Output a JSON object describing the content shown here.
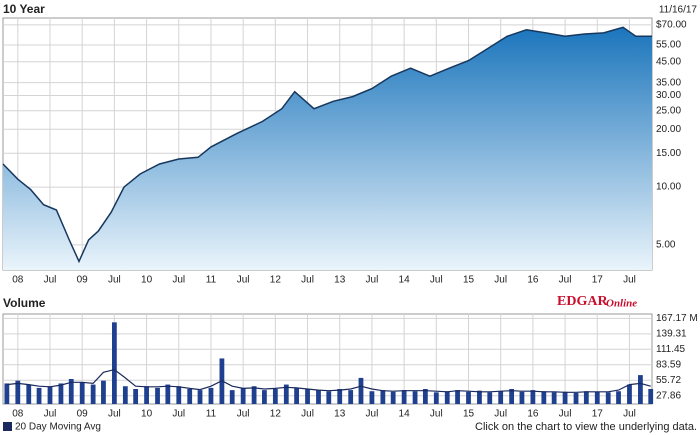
{
  "chart_data": [
    {
      "type": "area",
      "title": "10 Year",
      "date": "11/16/17",
      "log_scale": true,
      "grid": true,
      "line_color": "#17375e",
      "fill_top": "#1b75bc",
      "fill_bottom": "#eaf4fb",
      "x": [
        2007.77,
        2008.0,
        2008.2,
        2008.4,
        2008.6,
        2008.8,
        2008.95,
        2009.1,
        2009.25,
        2009.45,
        2009.65,
        2009.9,
        2010.2,
        2010.5,
        2010.8,
        2011.0,
        2011.4,
        2011.8,
        2012.1,
        2012.3,
        2012.6,
        2012.9,
        2013.2,
        2013.5,
        2013.8,
        2014.1,
        2014.4,
        2014.7,
        2015.0,
        2015.3,
        2015.6,
        2015.9,
        2016.2,
        2016.5,
        2016.8,
        2017.1,
        2017.4,
        2017.6,
        2017.85
      ],
      "values": [
        13.2,
        11.0,
        9.7,
        8.1,
        7.6,
        5.3,
        4.1,
        5.3,
        5.9,
        7.4,
        10,
        11.7,
        13.2,
        14.0,
        14.3,
        16.2,
        19.0,
        22.0,
        25.6,
        31.4,
        25.6,
        28,
        29.6,
        32.6,
        37.8,
        41.6,
        37.8,
        41.6,
        45.6,
        52.7,
        61,
        66,
        63.6,
        61,
        62.7,
        63.6,
        68,
        61,
        61
      ],
      "xlim": [
        2007.77,
        2017.85
      ],
      "ylim": [
        3.7,
        76
      ],
      "yticks": [
        {
          "value": 70,
          "label": "$70.00"
        },
        {
          "value": 55,
          "label": "55.00"
        },
        {
          "value": 45,
          "label": "45.00"
        },
        {
          "value": 35,
          "label": "35.00"
        },
        {
          "value": 30,
          "label": "30.00"
        },
        {
          "value": 25,
          "label": "25.00"
        },
        {
          "value": 20,
          "label": "20.00"
        },
        {
          "value": 15,
          "label": "15.00"
        },
        {
          "value": 10,
          "label": "10.00"
        },
        {
          "value": 5,
          "label": "5.00"
        }
      ],
      "xticks": [
        {
          "value": 2008,
          "label": "08"
        },
        {
          "value": 2008.5,
          "label": "Jul"
        },
        {
          "value": 2009,
          "label": "09"
        },
        {
          "value": 2009.5,
          "label": "Jul"
        },
        {
          "value": 2010,
          "label": "10"
        },
        {
          "value": 2010.5,
          "label": "Jul"
        },
        {
          "value": 2011,
          "label": "11"
        },
        {
          "value": 2011.5,
          "label": "Jul"
        },
        {
          "value": 2012,
          "label": "12"
        },
        {
          "value": 2012.5,
          "label": "Jul"
        },
        {
          "value": 2013,
          "label": "13"
        },
        {
          "value": 2013.5,
          "label": "Jul"
        },
        {
          "value": 2014,
          "label": "14"
        },
        {
          "value": 2014.5,
          "label": "Jul"
        },
        {
          "value": 2015,
          "label": "15"
        },
        {
          "value": 2015.5,
          "label": "Jul"
        },
        {
          "value": 2016,
          "label": "16"
        },
        {
          "value": 2016.5,
          "label": "Jul"
        },
        {
          "value": 2017,
          "label": "17"
        },
        {
          "value": 2017.5,
          "label": "Jul"
        }
      ]
    },
    {
      "type": "bar",
      "title": "Volume",
      "grid": true,
      "color": "#1f3f8f",
      "x": [
        2007.83,
        2008.0,
        2008.17,
        2008.33,
        2008.5,
        2008.67,
        2008.83,
        2009.0,
        2009.17,
        2009.33,
        2009.5,
        2009.67,
        2009.83,
        2010.0,
        2010.17,
        2010.33,
        2010.5,
        2010.67,
        2010.83,
        2011.0,
        2011.17,
        2011.33,
        2011.5,
        2011.67,
        2011.83,
        2012.0,
        2012.17,
        2012.33,
        2012.5,
        2012.67,
        2012.83,
        2013.0,
        2013.17,
        2013.33,
        2013.5,
        2013.67,
        2013.83,
        2014.0,
        2014.17,
        2014.33,
        2014.5,
        2014.67,
        2014.83,
        2015.0,
        2015.17,
        2015.33,
        2015.5,
        2015.67,
        2015.83,
        2016.0,
        2016.17,
        2016.33,
        2016.5,
        2016.67,
        2016.83,
        2017.0,
        2017.17,
        2017.33,
        2017.5,
        2017.67,
        2017.83
      ],
      "values": [
        50,
        55,
        48,
        42,
        45,
        50,
        58,
        52,
        48,
        55,
        160,
        45,
        40,
        45,
        42,
        48,
        45,
        40,
        38,
        42,
        95,
        38,
        42,
        45,
        38,
        40,
        48,
        42,
        40,
        38,
        36,
        40,
        38,
        60,
        36,
        38,
        35,
        38,
        36,
        40,
        34,
        36,
        38,
        35,
        37,
        34,
        36,
        40,
        35,
        38,
        36,
        34,
        35,
        33,
        36,
        35,
        34,
        36,
        48,
        65,
        40
      ],
      "moving_avg": {
        "name": "20 Day Moving Avg",
        "color": "#1a2a5e",
        "values": [
          48,
          50,
          48,
          45,
          44,
          47,
          52,
          52,
          50,
          70,
          75,
          60,
          45,
          44,
          44,
          45,
          44,
          41,
          39,
          45,
          55,
          45,
          41,
          42,
          40,
          41,
          43,
          42,
          40,
          38,
          37,
          38,
          40,
          45,
          40,
          37,
          36,
          37,
          37,
          37,
          36,
          35,
          37,
          36,
          35,
          35,
          36,
          37,
          36,
          36,
          35,
          35,
          34,
          34,
          35,
          35,
          35,
          38,
          48,
          50,
          45
        ]
      },
      "xlim": [
        2007.77,
        2017.85
      ],
      "ylim": [
        13,
        175
      ],
      "yticks": [
        {
          "value": 167.17,
          "label": "167.17 M"
        },
        139.31,
        111.45,
        83.59,
        55.72,
        27.86
      ],
      "xticks": [
        {
          "value": 2008,
          "label": "08"
        },
        {
          "value": 2008.5,
          "label": "Jul"
        },
        {
          "value": 2009,
          "label": "09"
        },
        {
          "value": 2009.5,
          "label": "Jul"
        },
        {
          "value": 2010,
          "label": "10"
        },
        {
          "value": 2010.5,
          "label": "Jul"
        },
        {
          "value": 2011,
          "label": "11"
        },
        {
          "value": 2011.5,
          "label": "Jul"
        },
        {
          "value": 2012,
          "label": "12"
        },
        {
          "value": 2012.5,
          "label": "Jul"
        },
        {
          "value": 2013,
          "label": "13"
        },
        {
          "value": 2013.5,
          "label": "Jul"
        },
        {
          "value": 2014,
          "label": "14"
        },
        {
          "value": 2014.5,
          "label": "Jul"
        },
        {
          "value": 2015,
          "label": "15"
        },
        {
          "value": 2015.5,
          "label": "Jul"
        },
        {
          "value": 2016,
          "label": "16"
        },
        {
          "value": 2016.5,
          "label": "Jul"
        },
        {
          "value": 2017,
          "label": "17"
        },
        {
          "value": 2017.5,
          "label": "Jul"
        }
      ]
    }
  ],
  "branding": {
    "name": "EDGAR",
    "suffix": "Online"
  },
  "footer_note": "Click on the chart to view the underlying data."
}
